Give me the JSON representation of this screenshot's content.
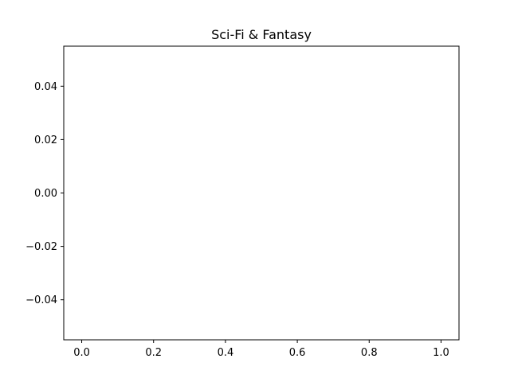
{
  "chart_data": {
    "type": "line",
    "title": "Sci-Fi & Fantasy",
    "xlabel": "",
    "ylabel": "",
    "series": [],
    "xlim": [
      -0.05,
      1.05
    ],
    "ylim": [
      -0.055,
      0.055
    ],
    "x_ticks": [
      0.0,
      0.2,
      0.4,
      0.6,
      0.8,
      1.0
    ],
    "x_tick_labels": [
      "0.0",
      "0.2",
      "0.4",
      "0.6",
      "0.8",
      "1.0"
    ],
    "y_ticks": [
      -0.04,
      -0.02,
      0.0,
      0.02,
      0.04
    ],
    "y_tick_labels": [
      "−0.04",
      "−0.02",
      "0.00",
      "0.02",
      "0.04"
    ],
    "grid": false,
    "legend": false
  }
}
